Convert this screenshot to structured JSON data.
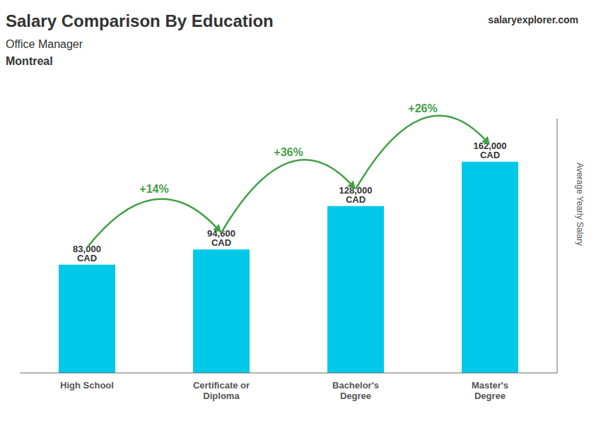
{
  "chart_data": {
    "type": "bar",
    "title": "Salary Comparison By Education",
    "subtitle": "Office Manager",
    "ylabel": "Average Yearly Salary",
    "categories": [
      "High School",
      "Certificate or\nDiploma",
      "Bachelor's\nDegree",
      "Master's\nDegree"
    ],
    "values": [
      83000,
      94600,
      128000,
      162000
    ],
    "value_labels": [
      "83,000 CAD",
      "94,600 CAD",
      "128,000 CAD",
      "162,000 CAD"
    ],
    "data_labels": true,
    "color": "#00c8e8",
    "ylim": [
      0,
      195000
    ],
    "grid": false,
    "tick_labels": "x",
    "annotations": [
      {
        "text": "Montreal"
      },
      {
        "text": "salaryexplorer.com"
      },
      {
        "text": "+14%",
        "from": "High School",
        "to": "Certificate or\nDiploma"
      },
      {
        "text": "+36%",
        "from": "Certificate or\nDiploma",
        "to": "Bachelor's\nDegree"
      },
      {
        "text": "+26%",
        "from": "Bachelor's\nDegree",
        "to": "Master's\nDegree"
      }
    ]
  }
}
